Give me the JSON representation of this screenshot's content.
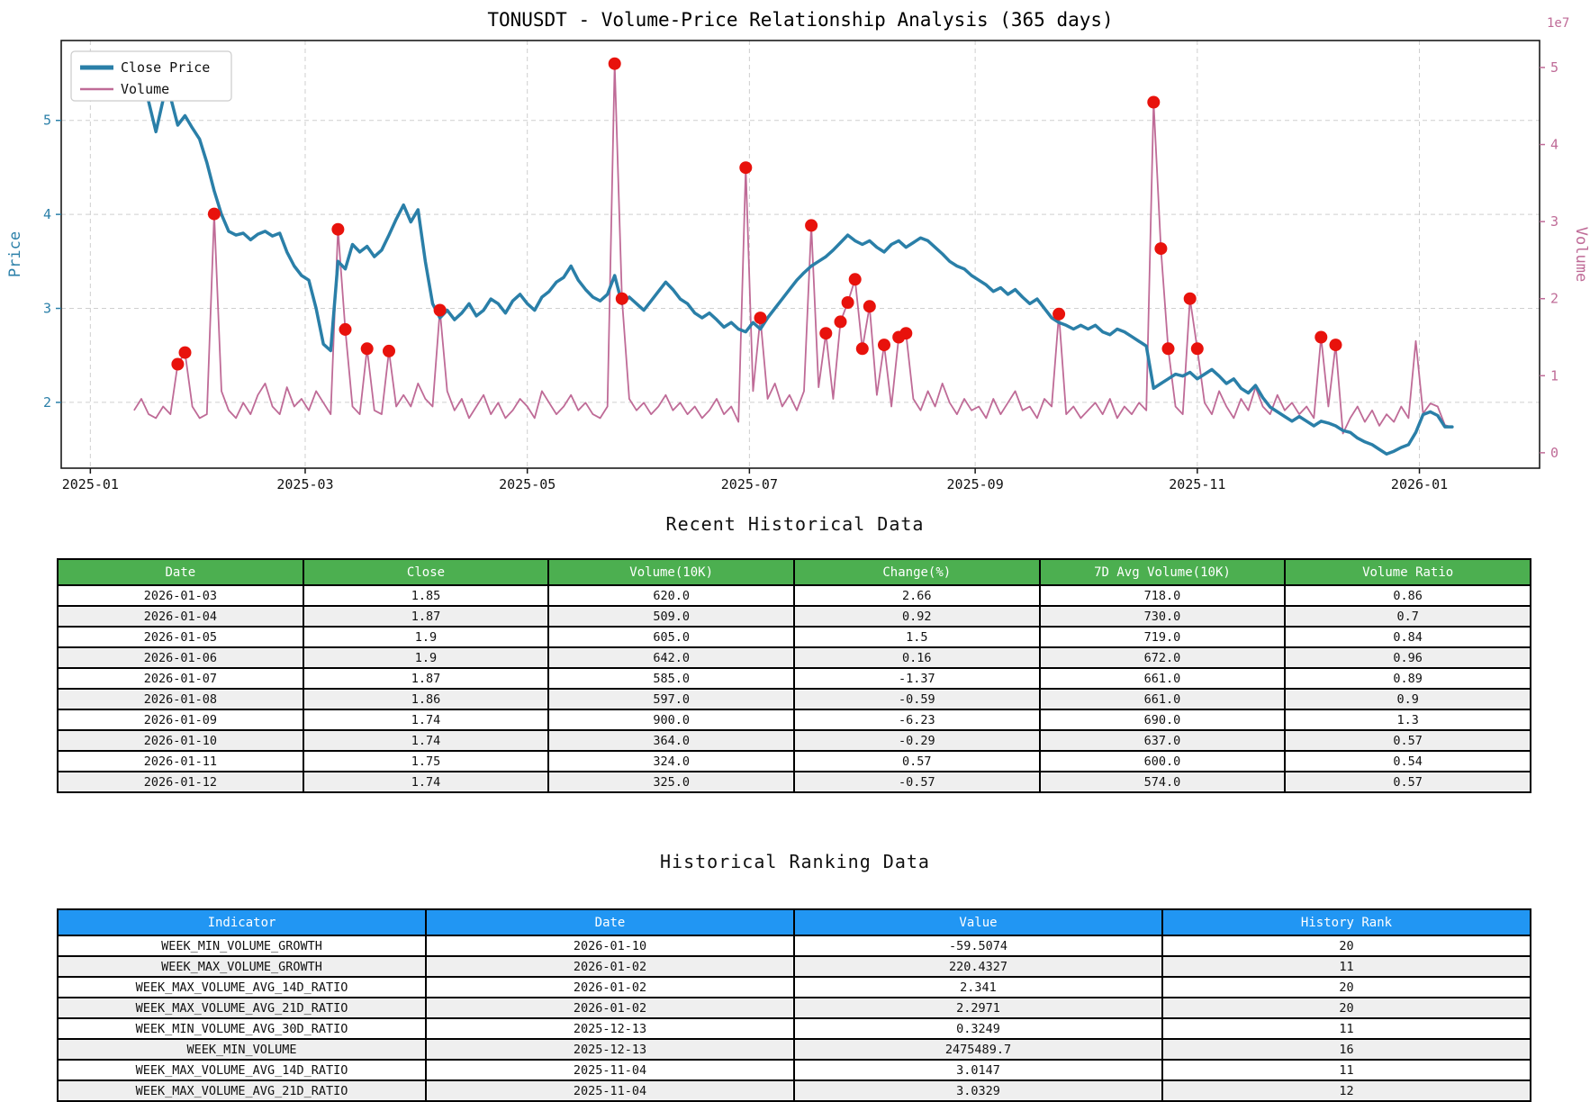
{
  "chart_data": {
    "type": "line",
    "title": "TONUSDT - Volume-Price Relationship Analysis (365 days)",
    "legend_position": "top-left",
    "grid": true,
    "x_start_date": "2025-01-13",
    "x_step_days": 2,
    "x_range_days": [
      -8,
      398
    ],
    "x_ticks": [
      {
        "day": 0,
        "label": "2025-01"
      },
      {
        "day": 59,
        "label": "2025-03"
      },
      {
        "day": 120,
        "label": "2025-05"
      },
      {
        "day": 181,
        "label": "2025-07"
      },
      {
        "day": 243,
        "label": "2025-09"
      },
      {
        "day": 304,
        "label": "2025-11"
      },
      {
        "day": 365,
        "label": "2026-01"
      }
    ],
    "left_axis": {
      "label": "Price",
      "color": "#2a7fa8",
      "ticks": [
        2,
        3,
        4,
        5
      ],
      "range": [
        1.3,
        5.85
      ]
    },
    "right_axis": {
      "label": "Volume",
      "color": "#bf6b97",
      "ticks": [
        0,
        1,
        2,
        3,
        4,
        5
      ],
      "range": [
        -0.2,
        5.35
      ],
      "offset_label": "1e7",
      "unit_multiplier": 10000000
    },
    "marker_color": "#e8120c",
    "marker_indices": [
      6,
      7,
      11,
      28,
      29,
      32,
      35,
      42,
      66,
      67,
      84,
      86,
      93,
      95,
      97,
      98,
      99,
      100,
      101,
      103,
      105,
      106,
      127,
      140,
      141,
      142,
      145,
      146,
      163,
      165
    ],
    "series": [
      {
        "name": "Close Price",
        "axis": "left",
        "color": "#2a7fa8",
        "line_width": 3.5,
        "values": [
          5.35,
          5.55,
          5.2,
          4.88,
          5.22,
          5.25,
          4.95,
          5.05,
          4.92,
          4.8,
          4.55,
          4.25,
          4.0,
          3.82,
          3.78,
          3.8,
          3.73,
          3.79,
          3.82,
          3.77,
          3.8,
          3.6,
          3.45,
          3.35,
          3.3,
          3.0,
          2.62,
          2.55,
          3.5,
          3.42,
          3.68,
          3.6,
          3.66,
          3.55,
          3.62,
          3.78,
          3.95,
          4.1,
          3.92,
          4.05,
          3.5,
          3.05,
          2.9,
          2.98,
          2.88,
          2.95,
          3.05,
          2.92,
          2.98,
          3.1,
          3.05,
          2.95,
          3.08,
          3.15,
          3.05,
          2.98,
          3.12,
          3.18,
          3.28,
          3.33,
          3.45,
          3.3,
          3.2,
          3.12,
          3.08,
          3.15,
          3.35,
          3.05,
          3.12,
          3.05,
          2.98,
          3.08,
          3.18,
          3.28,
          3.2,
          3.1,
          3.05,
          2.95,
          2.9,
          2.95,
          2.88,
          2.8,
          2.85,
          2.78,
          2.75,
          2.85,
          2.78,
          2.9,
          3.0,
          3.1,
          3.2,
          3.3,
          3.38,
          3.45,
          3.5,
          3.55,
          3.62,
          3.7,
          3.78,
          3.72,
          3.68,
          3.72,
          3.65,
          3.6,
          3.68,
          3.72,
          3.65,
          3.7,
          3.75,
          3.72,
          3.65,
          3.58,
          3.5,
          3.45,
          3.42,
          3.35,
          3.3,
          3.25,
          3.18,
          3.22,
          3.15,
          3.2,
          3.12,
          3.05,
          3.1,
          3.0,
          2.9,
          2.85,
          2.82,
          2.78,
          2.82,
          2.78,
          2.82,
          2.75,
          2.72,
          2.78,
          2.75,
          2.7,
          2.65,
          2.6,
          2.15,
          2.2,
          2.25,
          2.3,
          2.28,
          2.32,
          2.25,
          2.3,
          2.35,
          2.28,
          2.2,
          2.25,
          2.15,
          2.1,
          2.18,
          2.05,
          1.95,
          1.9,
          1.85,
          1.8,
          1.85,
          1.8,
          1.75,
          1.8,
          1.78,
          1.75,
          1.7,
          1.68,
          1.62,
          1.58,
          1.55,
          1.5,
          1.45,
          1.48,
          1.52,
          1.55,
          1.68,
          1.87,
          1.9,
          1.86,
          1.74,
          1.74
        ]
      },
      {
        "name": "Volume",
        "axis": "right",
        "color": "#bf6b97",
        "line_width": 1.8,
        "values": [
          0.55,
          0.7,
          0.5,
          0.45,
          0.6,
          0.5,
          1.15,
          1.3,
          0.6,
          0.45,
          0.5,
          3.1,
          0.8,
          0.55,
          0.45,
          0.65,
          0.5,
          0.75,
          0.9,
          0.6,
          0.5,
          0.85,
          0.6,
          0.7,
          0.55,
          0.8,
          0.65,
          0.5,
          2.9,
          1.6,
          0.6,
          0.5,
          1.35,
          0.55,
          0.5,
          1.32,
          0.6,
          0.75,
          0.6,
          0.9,
          0.7,
          0.6,
          1.85,
          0.8,
          0.55,
          0.7,
          0.45,
          0.6,
          0.75,
          0.5,
          0.65,
          0.45,
          0.55,
          0.7,
          0.6,
          0.45,
          0.8,
          0.65,
          0.5,
          0.6,
          0.75,
          0.55,
          0.65,
          0.5,
          0.45,
          0.6,
          5.05,
          2.0,
          0.7,
          0.55,
          0.65,
          0.5,
          0.6,
          0.75,
          0.55,
          0.65,
          0.5,
          0.6,
          0.45,
          0.55,
          0.7,
          0.5,
          0.6,
          0.4,
          3.7,
          0.8,
          1.75,
          0.7,
          0.9,
          0.6,
          0.75,
          0.55,
          0.8,
          2.95,
          0.85,
          1.55,
          0.7,
          1.7,
          1.95,
          2.25,
          1.35,
          1.9,
          0.75,
          1.4,
          0.6,
          1.5,
          1.55,
          0.7,
          0.55,
          0.8,
          0.6,
          0.9,
          0.65,
          0.5,
          0.7,
          0.55,
          0.6,
          0.45,
          0.7,
          0.5,
          0.65,
          0.8,
          0.55,
          0.6,
          0.45,
          0.7,
          0.6,
          1.8,
          0.5,
          0.6,
          0.45,
          0.55,
          0.65,
          0.5,
          0.7,
          0.45,
          0.6,
          0.5,
          0.65,
          0.55,
          4.55,
          2.65,
          1.35,
          0.6,
          0.5,
          2.0,
          1.35,
          0.65,
          0.5,
          0.8,
          0.6,
          0.45,
          0.7,
          0.55,
          0.85,
          0.6,
          0.5,
          0.75,
          0.55,
          0.65,
          0.5,
          0.6,
          0.45,
          1.5,
          0.6,
          1.4,
          0.25,
          0.45,
          0.6,
          0.4,
          0.55,
          0.35,
          0.5,
          0.4,
          0.6,
          0.45,
          1.45,
          0.51,
          0.64,
          0.6,
          0.36,
          0.33
        ]
      }
    ]
  },
  "sections": {
    "recent": {
      "title": "Recent Historical Data",
      "header_color": "#4caf50",
      "columns": [
        "Date",
        "Close",
        "Volume(10K)",
        "Change(%)",
        "7D Avg Volume(10K)",
        "Volume Ratio"
      ],
      "rows": [
        [
          "2026-01-03",
          "1.85",
          "620.0",
          "2.66",
          "718.0",
          "0.86"
        ],
        [
          "2026-01-04",
          "1.87",
          "509.0",
          "0.92",
          "730.0",
          "0.7"
        ],
        [
          "2026-01-05",
          "1.9",
          "605.0",
          "1.5",
          "719.0",
          "0.84"
        ],
        [
          "2026-01-06",
          "1.9",
          "642.0",
          "0.16",
          "672.0",
          "0.96"
        ],
        [
          "2026-01-07",
          "1.87",
          "585.0",
          "-1.37",
          "661.0",
          "0.89"
        ],
        [
          "2026-01-08",
          "1.86",
          "597.0",
          "-0.59",
          "661.0",
          "0.9"
        ],
        [
          "2026-01-09",
          "1.74",
          "900.0",
          "-6.23",
          "690.0",
          "1.3"
        ],
        [
          "2026-01-10",
          "1.74",
          "364.0",
          "-0.29",
          "637.0",
          "0.57"
        ],
        [
          "2026-01-11",
          "1.75",
          "324.0",
          "0.57",
          "600.0",
          "0.54"
        ],
        [
          "2026-01-12",
          "1.74",
          "325.0",
          "-0.57",
          "574.0",
          "0.57"
        ]
      ]
    },
    "ranking": {
      "title": "Historical Ranking Data",
      "header_color": "#2196f3",
      "columns": [
        "Indicator",
        "Date",
        "Value",
        "History Rank"
      ],
      "rows": [
        [
          "WEEK_MIN_VOLUME_GROWTH",
          "2026-01-10",
          "-59.5074",
          "20"
        ],
        [
          "WEEK_MAX_VOLUME_GROWTH",
          "2026-01-02",
          "220.4327",
          "11"
        ],
        [
          "WEEK_MAX_VOLUME_AVG_14D_RATIO",
          "2026-01-02",
          "2.341",
          "20"
        ],
        [
          "WEEK_MAX_VOLUME_AVG_21D_RATIO",
          "2026-01-02",
          "2.2971",
          "20"
        ],
        [
          "WEEK_MIN_VOLUME_AVG_30D_RATIO",
          "2025-12-13",
          "0.3249",
          "11"
        ],
        [
          "WEEK_MIN_VOLUME",
          "2025-12-13",
          "2475489.7",
          "16"
        ],
        [
          "WEEK_MAX_VOLUME_AVG_14D_RATIO",
          "2025-11-04",
          "3.0147",
          "11"
        ],
        [
          "WEEK_MAX_VOLUME_AVG_21D_RATIO",
          "2025-11-04",
          "3.0329",
          "12"
        ]
      ]
    }
  }
}
